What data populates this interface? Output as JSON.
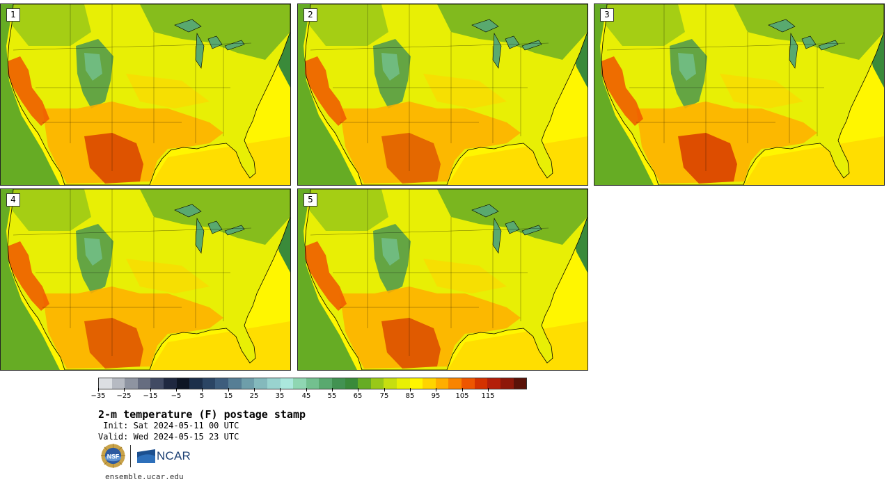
{
  "panels": [
    {
      "label": "1"
    },
    {
      "label": "2"
    },
    {
      "label": "3"
    },
    {
      "label": "4"
    },
    {
      "label": "5"
    }
  ],
  "colorbar": {
    "colors": [
      "#dcdfe3",
      "#b6bac2",
      "#8e94a1",
      "#666d80",
      "#414a63",
      "#1f2840",
      "#0d1524",
      "#1c2f4a",
      "#2b4564",
      "#3d5d7d",
      "#567e95",
      "#6e9eaa",
      "#84b9bc",
      "#99d3cf",
      "#abe8dd",
      "#8fd6b2",
      "#73c08f",
      "#59a96f",
      "#429252",
      "#3a8a3a",
      "#66ac24",
      "#99c818",
      "#c6de10",
      "#e8ef05",
      "#fff600",
      "#ffd400",
      "#ffae00",
      "#f98400",
      "#ee5600",
      "#d43200",
      "#b41f0a",
      "#8e1809",
      "#5a1208"
    ],
    "tick_labels": [
      "−35",
      "−25",
      "−15",
      "−5",
      "5",
      "15",
      "25",
      "35",
      "45",
      "55",
      "65",
      "75",
      "85",
      "95",
      "105",
      "115"
    ]
  },
  "title": "2-m temperature (F) postage stamp",
  "init": " Init: Sat 2024-05-11 00 UTC",
  "valid": "Valid: Wed 2024-05-15 23 UTC",
  "logo": {
    "left": "NSF",
    "right": "NCAR"
  },
  "url": "ensemble.ucar.edu"
}
